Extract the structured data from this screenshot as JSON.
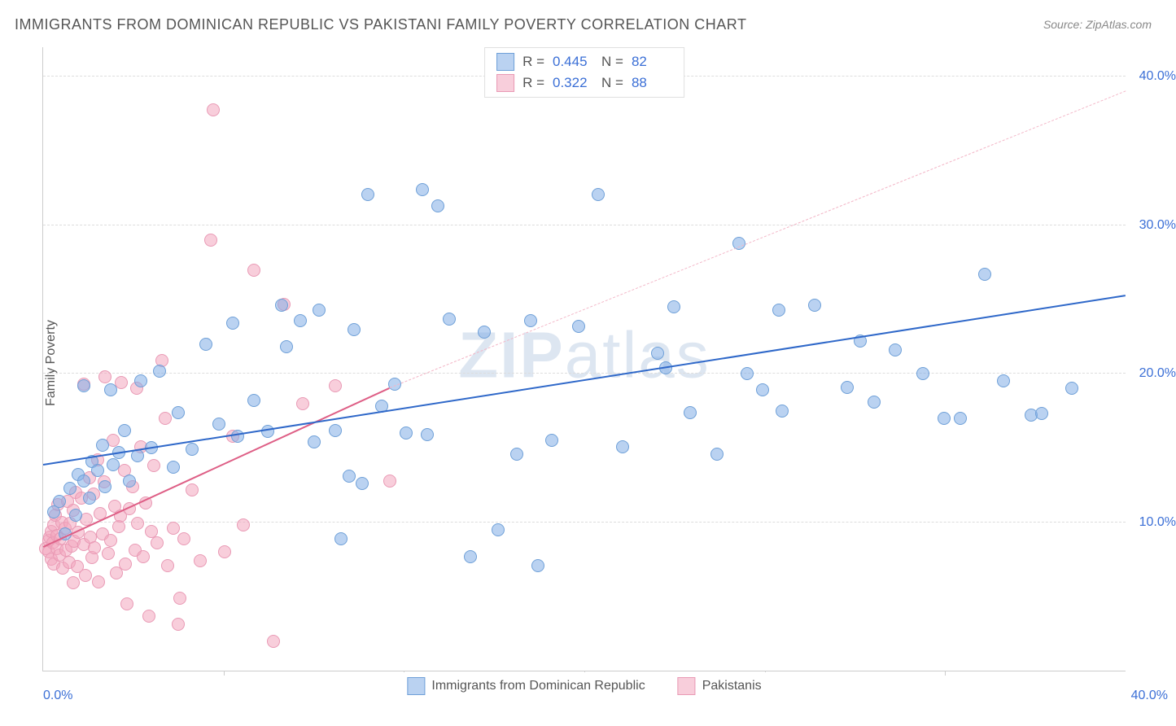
{
  "title": "IMMIGRANTS FROM DOMINICAN REPUBLIC VS PAKISTANI FAMILY POVERTY CORRELATION CHART",
  "source": "Source: ZipAtlas.com",
  "ylabel": "Family Poverty",
  "watermark_a": "ZIP",
  "watermark_b": "atlas",
  "chart": {
    "type": "scatter",
    "xlim": [
      0,
      40
    ],
    "ylim": [
      0,
      42
    ],
    "xticks": [
      0,
      40
    ],
    "xtick_minor": [
      6.67,
      13.33,
      20,
      26.67,
      33.33
    ],
    "yticks": [
      10,
      20,
      30,
      40
    ],
    "ytick_labels": [
      "10.0%",
      "20.0%",
      "30.0%",
      "40.0%"
    ],
    "xtick_labels_ends": [
      "0.0%",
      "40.0%"
    ],
    "grid_color": "#dddddd",
    "background_color": "#ffffff",
    "title_color": "#555555",
    "label_fontsize": 16,
    "series": [
      {
        "name": "Immigrants from Dominican Republic",
        "marker_fill": "rgba(129,173,230,0.55)",
        "marker_stroke": "#6fa0d8",
        "marker_size": 16,
        "line_color": "#2f68c9",
        "line_dash_color": "#2f68c9",
        "R": "0.445",
        "N": "82",
        "reg": {
          "x1": 0,
          "y1": 13.8,
          "x2": 40,
          "y2": 25.2
        },
        "points": [
          [
            0.4,
            10.7
          ],
          [
            0.6,
            11.4
          ],
          [
            0.8,
            9.2
          ],
          [
            1.0,
            12.3
          ],
          [
            1.2,
            10.5
          ],
          [
            1.3,
            13.2
          ],
          [
            1.5,
            12.8
          ],
          [
            1.5,
            19.2
          ],
          [
            1.7,
            11.6
          ],
          [
            1.8,
            14.1
          ],
          [
            2.0,
            13.5
          ],
          [
            2.2,
            15.2
          ],
          [
            2.3,
            12.4
          ],
          [
            2.5,
            18.9
          ],
          [
            2.6,
            13.9
          ],
          [
            2.8,
            14.7
          ],
          [
            3.0,
            16.2
          ],
          [
            3.2,
            12.8
          ],
          [
            3.5,
            14.5
          ],
          [
            3.6,
            19.5
          ],
          [
            4.0,
            15.0
          ],
          [
            4.3,
            20.2
          ],
          [
            4.8,
            13.7
          ],
          [
            5.0,
            17.4
          ],
          [
            5.5,
            14.9
          ],
          [
            6.0,
            22.0
          ],
          [
            6.5,
            16.6
          ],
          [
            7.0,
            23.4
          ],
          [
            7.2,
            15.8
          ],
          [
            7.8,
            18.2
          ],
          [
            8.3,
            16.1
          ],
          [
            8.8,
            24.6
          ],
          [
            9.0,
            21.8
          ],
          [
            9.5,
            23.6
          ],
          [
            10.0,
            15.4
          ],
          [
            10.2,
            24.3
          ],
          [
            10.8,
            16.2
          ],
          [
            11.0,
            8.9
          ],
          [
            11.3,
            13.1
          ],
          [
            11.5,
            23.0
          ],
          [
            11.8,
            12.6
          ],
          [
            12.0,
            32.1
          ],
          [
            12.5,
            17.8
          ],
          [
            13.0,
            19.3
          ],
          [
            13.4,
            16.0
          ],
          [
            14.0,
            32.4
          ],
          [
            14.2,
            15.9
          ],
          [
            14.6,
            31.3
          ],
          [
            15.0,
            23.7
          ],
          [
            15.8,
            7.7
          ],
          [
            16.3,
            22.8
          ],
          [
            16.8,
            9.5
          ],
          [
            17.5,
            14.6
          ],
          [
            18.0,
            23.6
          ],
          [
            18.3,
            7.1
          ],
          [
            18.8,
            15.5
          ],
          [
            19.8,
            23.2
          ],
          [
            20.5,
            32.1
          ],
          [
            21.4,
            15.1
          ],
          [
            22.7,
            21.4
          ],
          [
            23.3,
            24.5
          ],
          [
            23.9,
            17.4
          ],
          [
            24.9,
            14.6
          ],
          [
            25.7,
            28.8
          ],
          [
            26.6,
            18.9
          ],
          [
            27.2,
            24.3
          ],
          [
            27.3,
            17.5
          ],
          [
            28.5,
            24.6
          ],
          [
            29.7,
            19.1
          ],
          [
            30.2,
            22.2
          ],
          [
            30.7,
            18.1
          ],
          [
            31.5,
            21.6
          ],
          [
            32.5,
            20.0
          ],
          [
            33.3,
            17.0
          ],
          [
            33.9,
            17.0
          ],
          [
            34.8,
            26.7
          ],
          [
            35.5,
            19.5
          ],
          [
            36.5,
            17.2
          ],
          [
            36.9,
            17.3
          ],
          [
            38.0,
            19.0
          ],
          [
            23.0,
            20.4
          ],
          [
            26.0,
            20.0
          ]
        ]
      },
      {
        "name": "Pakistanis",
        "marker_fill": "rgba(243,166,189,0.55)",
        "marker_stroke": "#e99ab5",
        "marker_size": 16,
        "line_color": "#de5f86",
        "line_dash_color": "#f3b6c7",
        "R": "0.322",
        "N": "88",
        "reg_solid": {
          "x1": 0,
          "y1": 8.3,
          "x2": 12.8,
          "y2": 19.0
        },
        "reg_dash": {
          "x1": 12.8,
          "y1": 19.0,
          "x2": 40,
          "y2": 39.0
        },
        "points": [
          [
            0.1,
            8.2
          ],
          [
            0.2,
            8.8
          ],
          [
            0.2,
            8.0
          ],
          [
            0.25,
            9.0
          ],
          [
            0.3,
            7.5
          ],
          [
            0.3,
            9.4
          ],
          [
            0.35,
            8.6
          ],
          [
            0.4,
            9.8
          ],
          [
            0.4,
            7.2
          ],
          [
            0.45,
            10.5
          ],
          [
            0.5,
            8.2
          ],
          [
            0.5,
            9.1
          ],
          [
            0.55,
            11.2
          ],
          [
            0.6,
            7.8
          ],
          [
            0.62,
            8.9
          ],
          [
            0.7,
            10.0
          ],
          [
            0.72,
            6.9
          ],
          [
            0.8,
            9.6
          ],
          [
            0.85,
            8.1
          ],
          [
            0.9,
            11.4
          ],
          [
            0.95,
            7.3
          ],
          [
            1.0,
            9.9
          ],
          [
            1.05,
            8.4
          ],
          [
            1.1,
            10.8
          ],
          [
            1.1,
            5.9
          ],
          [
            1.15,
            8.7
          ],
          [
            1.2,
            12.0
          ],
          [
            1.25,
            7.0
          ],
          [
            1.3,
            9.3
          ],
          [
            1.4,
            11.6
          ],
          [
            1.5,
            8.5
          ],
          [
            1.5,
            19.3
          ],
          [
            1.55,
            6.4
          ],
          [
            1.6,
            10.2
          ],
          [
            1.7,
            13.0
          ],
          [
            1.75,
            9.0
          ],
          [
            1.8,
            7.6
          ],
          [
            1.85,
            11.9
          ],
          [
            1.9,
            8.3
          ],
          [
            2.0,
            14.2
          ],
          [
            2.05,
            6.0
          ],
          [
            2.1,
            10.6
          ],
          [
            2.2,
            9.2
          ],
          [
            2.25,
            12.7
          ],
          [
            2.3,
            19.8
          ],
          [
            2.4,
            7.9
          ],
          [
            2.5,
            8.8
          ],
          [
            2.6,
            15.5
          ],
          [
            2.65,
            11.1
          ],
          [
            2.7,
            6.6
          ],
          [
            2.8,
            9.7
          ],
          [
            2.85,
            10.4
          ],
          [
            2.9,
            19.4
          ],
          [
            3.0,
            13.5
          ],
          [
            3.05,
            7.2
          ],
          [
            3.1,
            4.5
          ],
          [
            3.2,
            10.9
          ],
          [
            3.3,
            12.4
          ],
          [
            3.4,
            8.1
          ],
          [
            3.45,
            19.0
          ],
          [
            3.5,
            9.9
          ],
          [
            3.6,
            15.1
          ],
          [
            3.7,
            7.7
          ],
          [
            3.8,
            11.3
          ],
          [
            3.9,
            3.7
          ],
          [
            4.0,
            9.4
          ],
          [
            4.1,
            13.8
          ],
          [
            4.2,
            8.6
          ],
          [
            4.4,
            20.9
          ],
          [
            4.5,
            17.0
          ],
          [
            4.6,
            7.1
          ],
          [
            4.8,
            9.6
          ],
          [
            5.0,
            3.1
          ],
          [
            5.05,
            4.9
          ],
          [
            5.2,
            8.9
          ],
          [
            5.5,
            12.2
          ],
          [
            5.8,
            7.4
          ],
          [
            6.2,
            29.0
          ],
          [
            6.3,
            37.8
          ],
          [
            6.7,
            8.0
          ],
          [
            7.0,
            15.8
          ],
          [
            7.4,
            9.8
          ],
          [
            7.8,
            27.0
          ],
          [
            8.5,
            2.0
          ],
          [
            8.9,
            24.7
          ],
          [
            9.6,
            18.0
          ],
          [
            10.8,
            19.2
          ],
          [
            12.8,
            12.8
          ]
        ]
      }
    ]
  }
}
